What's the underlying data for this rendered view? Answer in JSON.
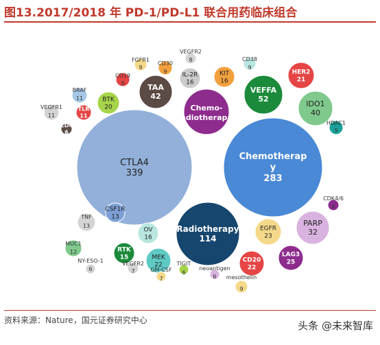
{
  "header": {
    "title": "图13.2017/2018 年 PD-1/PD-L1 联合用药临床组合",
    "accent_color": "#c0392b"
  },
  "footer": {
    "source": "资料来源：Nature，国元证券研究中心",
    "watermark": "头条 @未来智库"
  },
  "chart_data": {
    "type": "bubble",
    "title": "",
    "bubbles": [
      {
        "label": "CTLA4",
        "value": 339,
        "color": "#92b0d9",
        "label_inside": true
      },
      {
        "label": "Chemotherapy",
        "value": 283,
        "color": "#4a89d6",
        "label_inside": true
      },
      {
        "label": "Radiotherapy",
        "value": 114,
        "color": "#16466e",
        "label_inside": true
      },
      {
        "label": "Chemo-radiotherap...",
        "value": null,
        "color": "#8e2c8e",
        "label_inside": true
      },
      {
        "label": "VEFFA",
        "value": 52,
        "color": "#1b8a3a",
        "label_inside": true
      },
      {
        "label": "TAA",
        "value": 42,
        "color": "#5c4a44",
        "label_inside": true
      },
      {
        "label": "IDO1",
        "value": 40,
        "color": "#7fc98c",
        "label_inside": true
      },
      {
        "label": "PARP",
        "value": 32,
        "color": "#d9b3e0",
        "label_inside": true
      },
      {
        "label": "LAG3",
        "value": 25,
        "color": "#8e2c8e",
        "label_inside": true
      },
      {
        "label": "EGFR",
        "value": 23,
        "color": "#f5d98a",
        "label_inside": true
      },
      {
        "label": "MEK",
        "value": 22,
        "color": "#5fc9c4",
        "label_inside": true
      },
      {
        "label": "CD20",
        "value": 22,
        "color": "#e64545",
        "label_inside": true
      },
      {
        "label": "HER2",
        "value": 21,
        "color": "#e64545",
        "label_inside": true
      },
      {
        "label": "BTK",
        "value": 20,
        "color": "#a6d44a",
        "label_inside": true
      },
      {
        "label": "KIT",
        "value": 16,
        "color": "#f2a03d",
        "label_inside": true
      },
      {
        "label": "IL-2R",
        "value": 16,
        "color": "#cccccc",
        "label_inside": true
      },
      {
        "label": "OV",
        "value": 16,
        "color": "#b8e6e0",
        "label_inside": true
      },
      {
        "label": "RTK",
        "value": 15,
        "color": "#1b8a3a",
        "label_inside": true
      },
      {
        "label": "CSF1R",
        "value": 13,
        "color": "#7d9fd6",
        "label_inside": true
      },
      {
        "label": "TNF",
        "value": 13,
        "color": "#d4d4d4",
        "label_inside": false
      },
      {
        "label": "MUC1",
        "value": 12,
        "color": "#7fc98c",
        "label_inside": false
      },
      {
        "label": "BRAF",
        "value": 11,
        "color": "#a6c8e6",
        "label_inside": false
      },
      {
        "label": "TLR",
        "value": 11,
        "color": "#e64545",
        "label_inside": true
      },
      {
        "label": "VEGFR1",
        "value": 11,
        "color": "#d4d4d4",
        "label_inside": false
      },
      {
        "label": "CD19",
        "value": 9,
        "color": "#e64545",
        "label_inside": false
      },
      {
        "label": "FGFR1",
        "value": 9,
        "color": "#f5d98a",
        "label_inside": false
      },
      {
        "label": "CD30",
        "value": 9,
        "color": "#f2a03d",
        "label_inside": false
      },
      {
        "label": "CD38",
        "value": 9,
        "color": "#b8e6e0",
        "label_inside": false
      },
      {
        "label": "HDAC1",
        "value": 9,
        "color": "#1aa39a",
        "label_inside": false
      },
      {
        "label": "mesothelin",
        "value": 9,
        "color": "#f5d98a",
        "label_inside": false
      },
      {
        "label": "CDK4/6",
        "value": 8,
        "color": "#8e2c8e",
        "label_inside": false
      },
      {
        "label": "VEGFR2",
        "value": 8,
        "color": "#d4d4d4",
        "label_inside": false
      },
      {
        "label": "VEGFR2",
        "value": 7,
        "color": "#d4d4d4",
        "label_inside": false
      },
      {
        "label": "GM-CSF",
        "value": 7,
        "color": "#f5d98a",
        "label_inside": false
      },
      {
        "label": "CD4",
        "value": 6,
        "color": "#5c4a44",
        "label_inside": true
      },
      {
        "label": "NY-ESO-1",
        "value": 6,
        "color": "#d4d4d4",
        "label_inside": false
      },
      {
        "label": "TIGIT",
        "value": 6,
        "color": "#a6d44a",
        "label_inside": false
      },
      {
        "label": "neoantigen",
        "value": 6,
        "color": "#d9b3e0",
        "label_inside": false
      }
    ]
  }
}
